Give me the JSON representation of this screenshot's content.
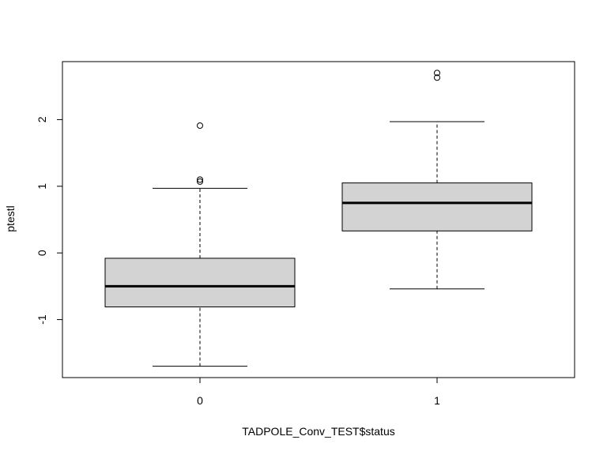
{
  "chart_data": {
    "type": "boxplot",
    "title": "",
    "xlabel": "TADPOLE_Conv_TEST$status",
    "ylabel": "ptestl",
    "categories": [
      "0",
      "1"
    ],
    "boxes": [
      {
        "category": "0",
        "whisker_low": -1.7,
        "q1": -0.81,
        "median": -0.5,
        "q3": -0.08,
        "whisker_high": 0.97,
        "outliers": [
          1.07,
          1.1,
          1.91
        ]
      },
      {
        "category": "1",
        "whisker_low": -0.54,
        "q1": 0.33,
        "median": 0.75,
        "q3": 1.05,
        "whisker_high": 1.97,
        "outliers": [
          2.63,
          2.7
        ]
      }
    ],
    "ylim": [
      -1.87,
      2.87
    ],
    "yticks": [
      -1,
      0,
      1,
      2
    ],
    "box_color": "#d3d3d3",
    "grid": false,
    "legend": "none"
  }
}
